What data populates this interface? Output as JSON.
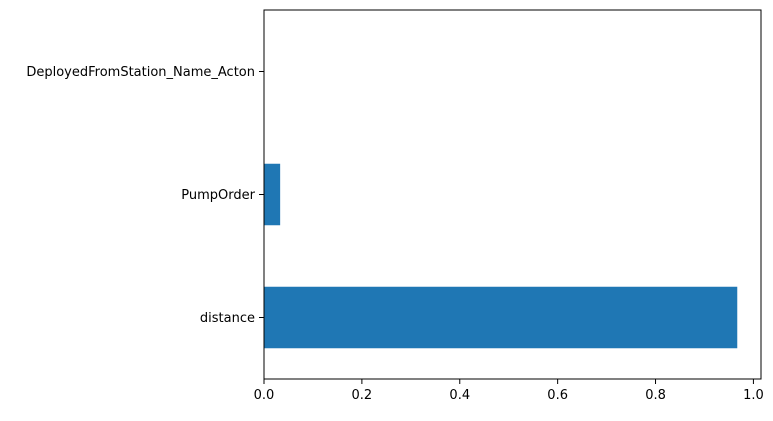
{
  "chart_data": {
    "type": "bar",
    "orientation": "horizontal",
    "categories": [
      "distance",
      "PumpOrder",
      "DeployedFromStation_Name_Acton"
    ],
    "values": [
      0.967,
      0.033,
      0.0
    ],
    "title": "",
    "xlabel": "",
    "ylabel": "",
    "xlim": [
      0.0,
      1.0155
    ],
    "xticks": [
      0.0,
      0.2,
      0.4,
      0.6,
      0.8,
      1.0
    ],
    "xtick_labels": [
      "0.0",
      "0.2",
      "0.4",
      "0.6",
      "0.8",
      "1.0"
    ],
    "grid": false,
    "legend": "none",
    "bar_color": "#1f77b4"
  }
}
